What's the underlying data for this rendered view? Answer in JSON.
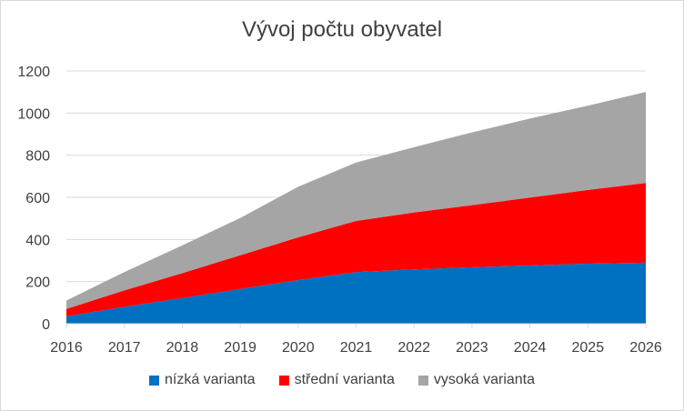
{
  "chart_data": {
    "type": "area",
    "stacked": true,
    "title": "Vývoj počtu obyvatel",
    "x": [
      "2016",
      "2017",
      "2018",
      "2019",
      "2020",
      "2021",
      "2022",
      "2023",
      "2024",
      "2025",
      "2026"
    ],
    "series": [
      {
        "name": "nízká varianta",
        "color": "#0070c0",
        "values": [
          35,
          80,
          122,
          165,
          207,
          245,
          258,
          268,
          277,
          285,
          290
        ]
      },
      {
        "name": "střední varianta",
        "color": "#ff0000",
        "values": [
          35,
          78,
          118,
          160,
          203,
          243,
          270,
          295,
          322,
          350,
          378
        ]
      },
      {
        "name": "vysoká varianta",
        "color": "#a5a5a5",
        "values": [
          40,
          87,
          132,
          177,
          240,
          277,
          310,
          345,
          375,
          400,
          432
        ]
      }
    ],
    "ylim": [
      0,
      1200
    ],
    "yticks": [
      0,
      200,
      400,
      600,
      800,
      1000,
      1200
    ],
    "grid": true,
    "legend_position": "bottom"
  }
}
